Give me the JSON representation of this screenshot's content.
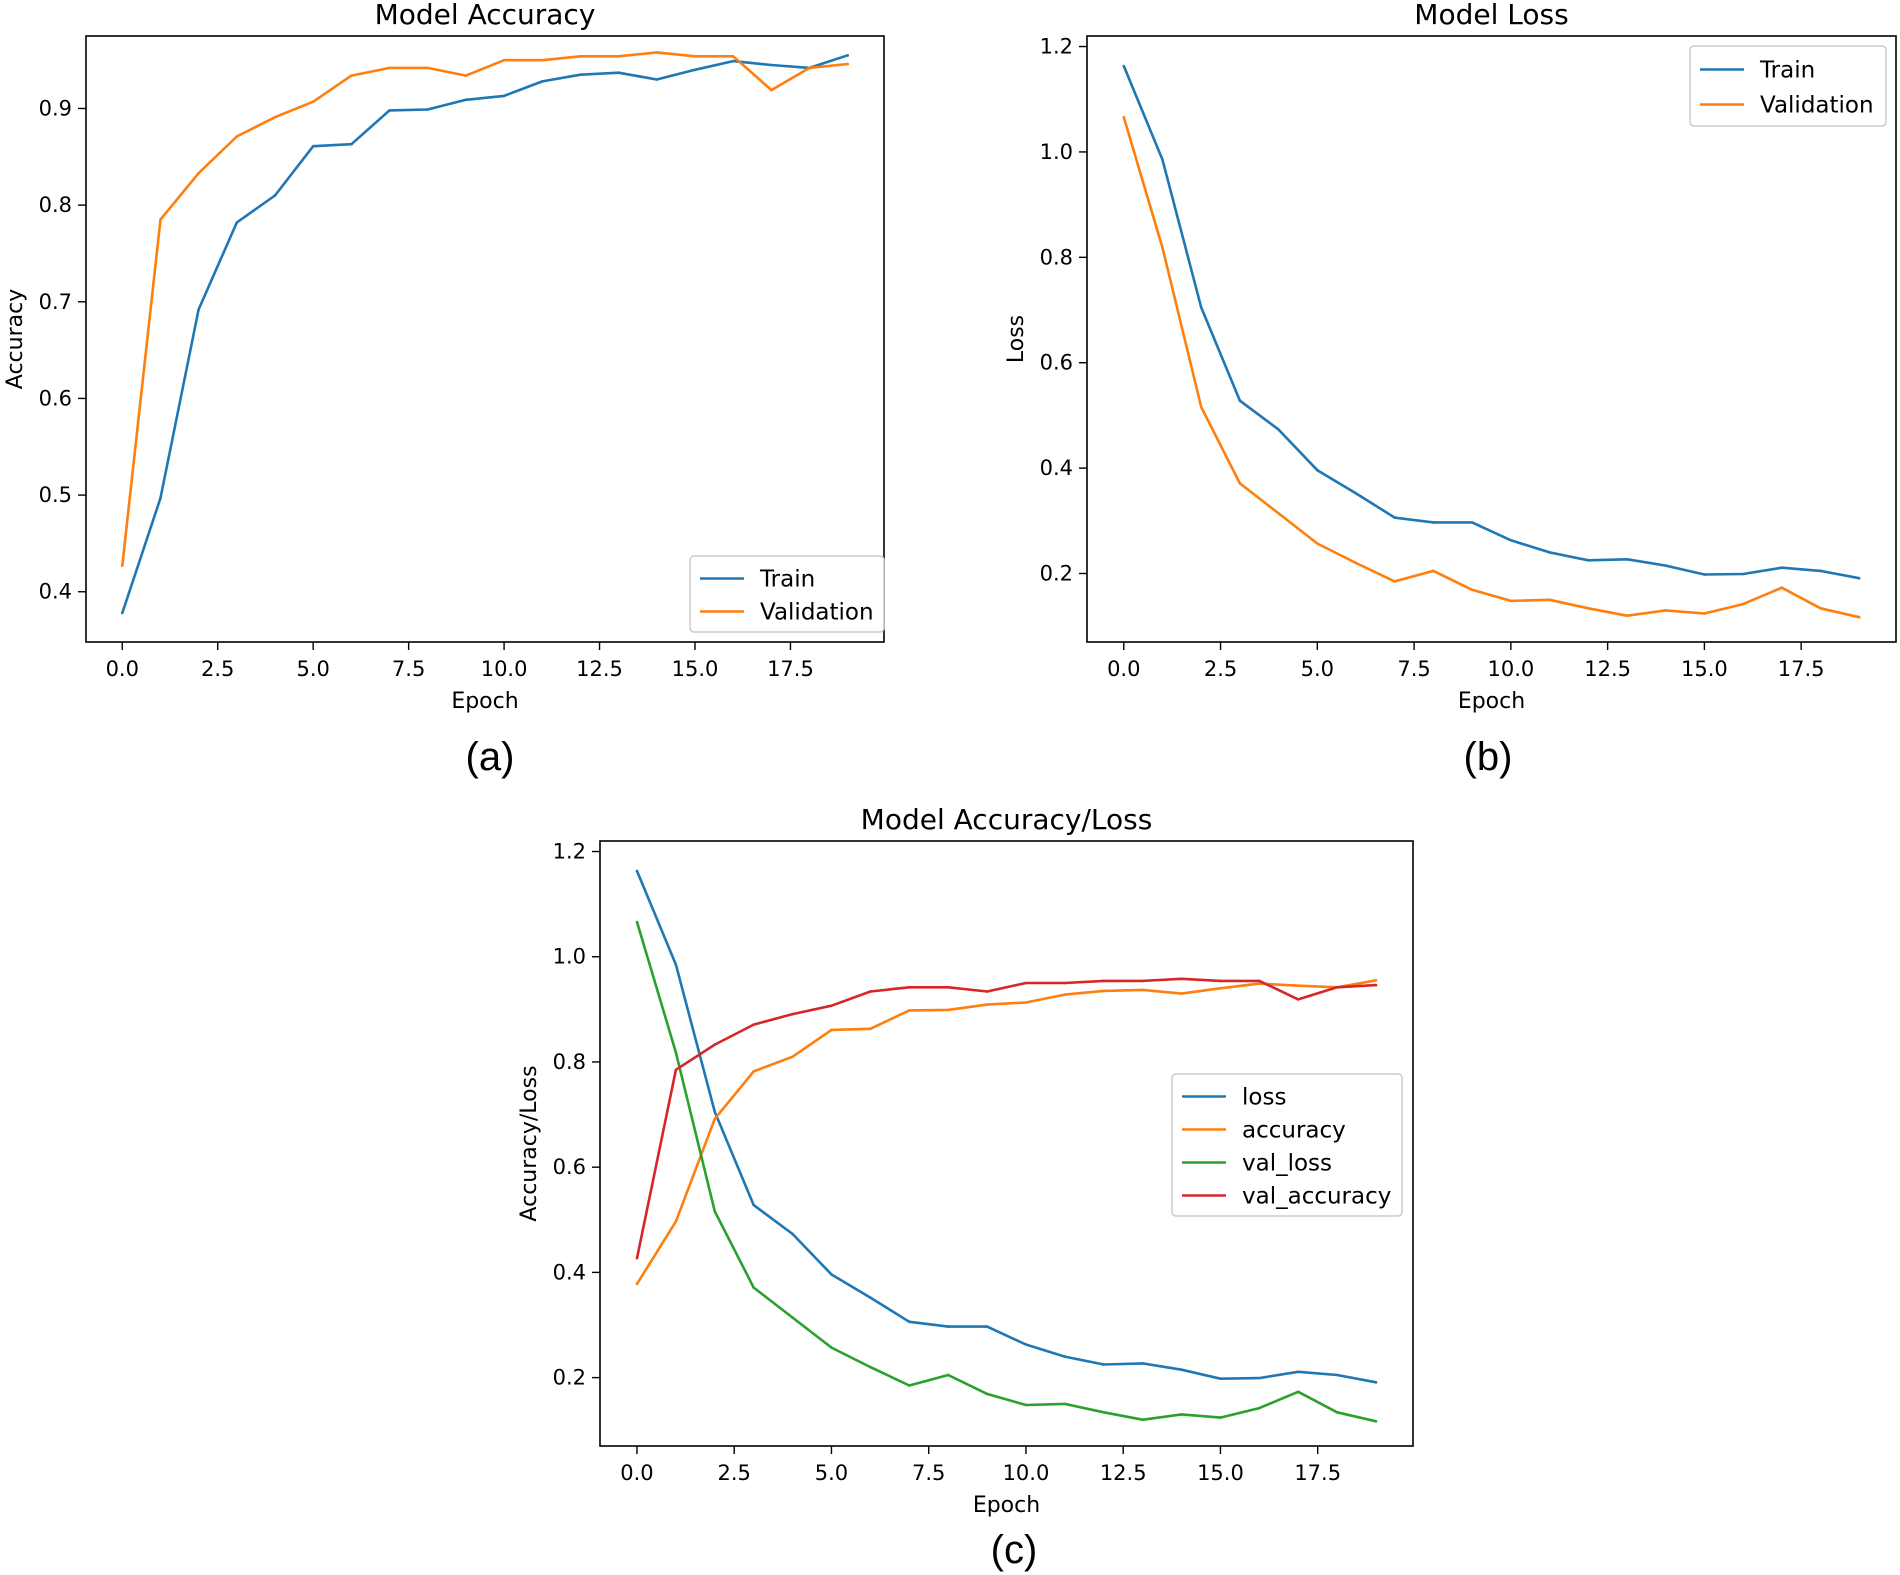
{
  "panels": [
    {
      "id": "a",
      "caption": "(a)"
    },
    {
      "id": "b",
      "caption": "(b)"
    },
    {
      "id": "c",
      "caption": "(c)"
    }
  ],
  "colors": {
    "blue": "#1f77b4",
    "orange": "#ff7f0e",
    "green": "#2ca02c",
    "red": "#d62728"
  },
  "chart_data": [
    {
      "id": "a",
      "type": "line",
      "title": "Model Accuracy",
      "xlabel": "Epoch",
      "ylabel": "Accuracy",
      "xlim": [
        -0.95,
        19.95
      ],
      "ylim": [
        0.348,
        0.975
      ],
      "xticks": [
        0,
        2.5,
        5,
        7.5,
        10,
        12.5,
        15,
        17.5
      ],
      "xtick_labels": [
        "0.0",
        "2.5",
        "5.0",
        "7.5",
        "10.0",
        "12.5",
        "15.0",
        "17.5"
      ],
      "yticks": [
        0.4,
        0.5,
        0.6,
        0.7,
        0.8,
        0.9
      ],
      "ytick_labels": [
        "0.4",
        "0.5",
        "0.6",
        "0.7",
        "0.8",
        "0.9"
      ],
      "legend_position": "lower-right",
      "x": [
        0,
        1,
        2,
        3,
        4,
        5,
        6,
        7,
        8,
        9,
        10,
        11,
        12,
        13,
        14,
        15,
        16,
        17,
        18,
        19
      ],
      "series": [
        {
          "name": "Train",
          "color": "#1f77b4",
          "values": [
            0.378,
            0.497,
            0.692,
            0.782,
            0.81,
            0.861,
            0.863,
            0.898,
            0.899,
            0.909,
            0.913,
            0.928,
            0.935,
            0.937,
            0.93,
            0.94,
            0.949,
            0.945,
            0.942,
            0.955
          ]
        },
        {
          "name": "Validation",
          "color": "#ff7f0e",
          "values": [
            0.427,
            0.785,
            0.833,
            0.871,
            0.891,
            0.907,
            0.934,
            0.942,
            0.942,
            0.934,
            0.95,
            0.95,
            0.954,
            0.954,
            0.958,
            0.954,
            0.954,
            0.919,
            0.942,
            0.946
          ]
        }
      ]
    },
    {
      "id": "b",
      "type": "line",
      "title": "Model Loss",
      "xlabel": "Epoch",
      "ylabel": "Loss",
      "xlim": [
        -0.95,
        19.95
      ],
      "ylim": [
        0.07,
        1.22
      ],
      "xticks": [
        0,
        2.5,
        5,
        7.5,
        10,
        12.5,
        15,
        17.5
      ],
      "xtick_labels": [
        "0.0",
        "2.5",
        "5.0",
        "7.5",
        "10.0",
        "12.5",
        "15.0",
        "17.5"
      ],
      "yticks": [
        0.2,
        0.4,
        0.6,
        0.8,
        1.0,
        1.2
      ],
      "ytick_labels": [
        "0.2",
        "0.4",
        "0.6",
        "0.8",
        "1.0",
        "1.2"
      ],
      "legend_position": "upper-right",
      "x": [
        0,
        1,
        2,
        3,
        4,
        5,
        6,
        7,
        8,
        9,
        10,
        11,
        12,
        13,
        14,
        15,
        16,
        17,
        18,
        19
      ],
      "series": [
        {
          "name": "Train",
          "color": "#1f77b4",
          "values": [
            1.163,
            0.985,
            0.705,
            0.528,
            0.473,
            0.396,
            0.352,
            0.306,
            0.297,
            0.297,
            0.263,
            0.24,
            0.225,
            0.227,
            0.215,
            0.198,
            0.199,
            0.211,
            0.205,
            0.191
          ]
        },
        {
          "name": "Validation",
          "color": "#ff7f0e",
          "values": [
            1.066,
            0.818,
            0.516,
            0.371,
            0.314,
            0.257,
            0.22,
            0.185,
            0.205,
            0.169,
            0.148,
            0.15,
            0.134,
            0.12,
            0.13,
            0.124,
            0.142,
            0.173,
            0.134,
            0.117
          ]
        }
      ]
    },
    {
      "id": "c",
      "type": "line",
      "title": "Model Accuracy/Loss",
      "xlabel": "Epoch",
      "ylabel": "Accuracy/Loss",
      "xlim": [
        -0.95,
        19.95
      ],
      "ylim": [
        0.07,
        1.22
      ],
      "xticks": [
        0,
        2.5,
        5,
        7.5,
        10,
        12.5,
        15,
        17.5
      ],
      "xtick_labels": [
        "0.0",
        "2.5",
        "5.0",
        "7.5",
        "10.0",
        "12.5",
        "15.0",
        "17.5"
      ],
      "yticks": [
        0.2,
        0.4,
        0.6,
        0.8,
        1.0,
        1.2
      ],
      "ytick_labels": [
        "0.2",
        "0.4",
        "0.6",
        "0.8",
        "1.0",
        "1.2"
      ],
      "legend_position": "center-right",
      "x": [
        0,
        1,
        2,
        3,
        4,
        5,
        6,
        7,
        8,
        9,
        10,
        11,
        12,
        13,
        14,
        15,
        16,
        17,
        18,
        19
      ],
      "series": [
        {
          "name": "loss",
          "color": "#1f77b4",
          "values": [
            1.163,
            0.985,
            0.705,
            0.528,
            0.473,
            0.396,
            0.352,
            0.306,
            0.297,
            0.297,
            0.263,
            0.24,
            0.225,
            0.227,
            0.215,
            0.198,
            0.199,
            0.211,
            0.205,
            0.191
          ]
        },
        {
          "name": "accuracy",
          "color": "#ff7f0e",
          "values": [
            0.378,
            0.497,
            0.692,
            0.782,
            0.81,
            0.861,
            0.863,
            0.898,
            0.899,
            0.909,
            0.913,
            0.928,
            0.935,
            0.937,
            0.93,
            0.94,
            0.949,
            0.945,
            0.942,
            0.955
          ]
        },
        {
          "name": "val_loss",
          "color": "#2ca02c",
          "values": [
            1.066,
            0.818,
            0.516,
            0.371,
            0.314,
            0.257,
            0.22,
            0.185,
            0.205,
            0.169,
            0.148,
            0.15,
            0.134,
            0.12,
            0.13,
            0.124,
            0.142,
            0.173,
            0.134,
            0.117
          ]
        },
        {
          "name": "val_accuracy",
          "color": "#d62728",
          "values": [
            0.427,
            0.785,
            0.833,
            0.871,
            0.891,
            0.907,
            0.934,
            0.942,
            0.942,
            0.934,
            0.95,
            0.95,
            0.954,
            0.954,
            0.958,
            0.954,
            0.954,
            0.919,
            0.942,
            0.946
          ]
        }
      ]
    }
  ]
}
